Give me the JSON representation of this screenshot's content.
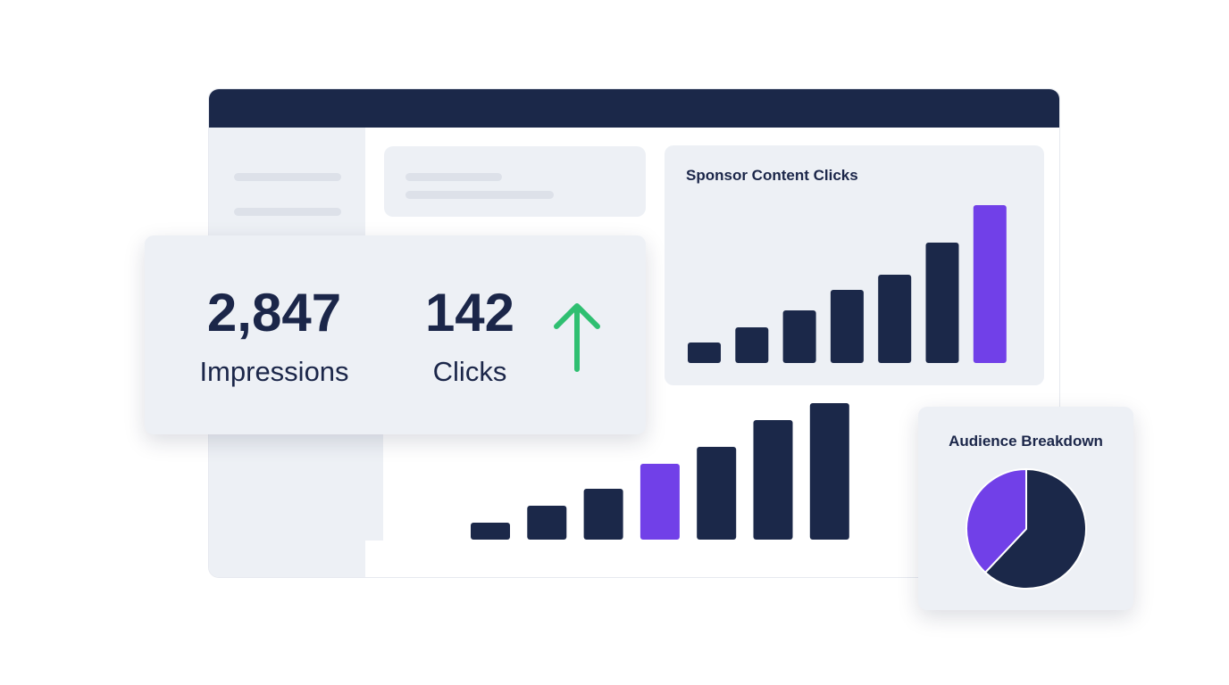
{
  "metrics": {
    "impressions_value": "2,847",
    "impressions_label": "Impressions",
    "clicks_value": "142",
    "clicks_label": "Clicks",
    "trend_icon": "arrow-up-icon",
    "trend_color": "#2fbf71"
  },
  "colors": {
    "navy": "#1b2849",
    "purple": "#7140e8",
    "panel": "#edf0f5"
  },
  "chart_data": [
    {
      "type": "bar",
      "title": "Sponsor Content Clicks",
      "values": [
        23,
        40,
        59,
        82,
        99,
        135,
        177
      ],
      "highlight_index": 6,
      "grid": false
    },
    {
      "type": "bar",
      "title": "",
      "values": [
        19,
        38,
        57,
        85,
        104,
        134,
        153
      ],
      "highlight_index": 3,
      "grid": false
    },
    {
      "type": "pie",
      "title": "Audience Breakdown",
      "values": [
        62,
        38
      ],
      "colors": [
        "#1b2849",
        "#7140e8"
      ]
    }
  ]
}
